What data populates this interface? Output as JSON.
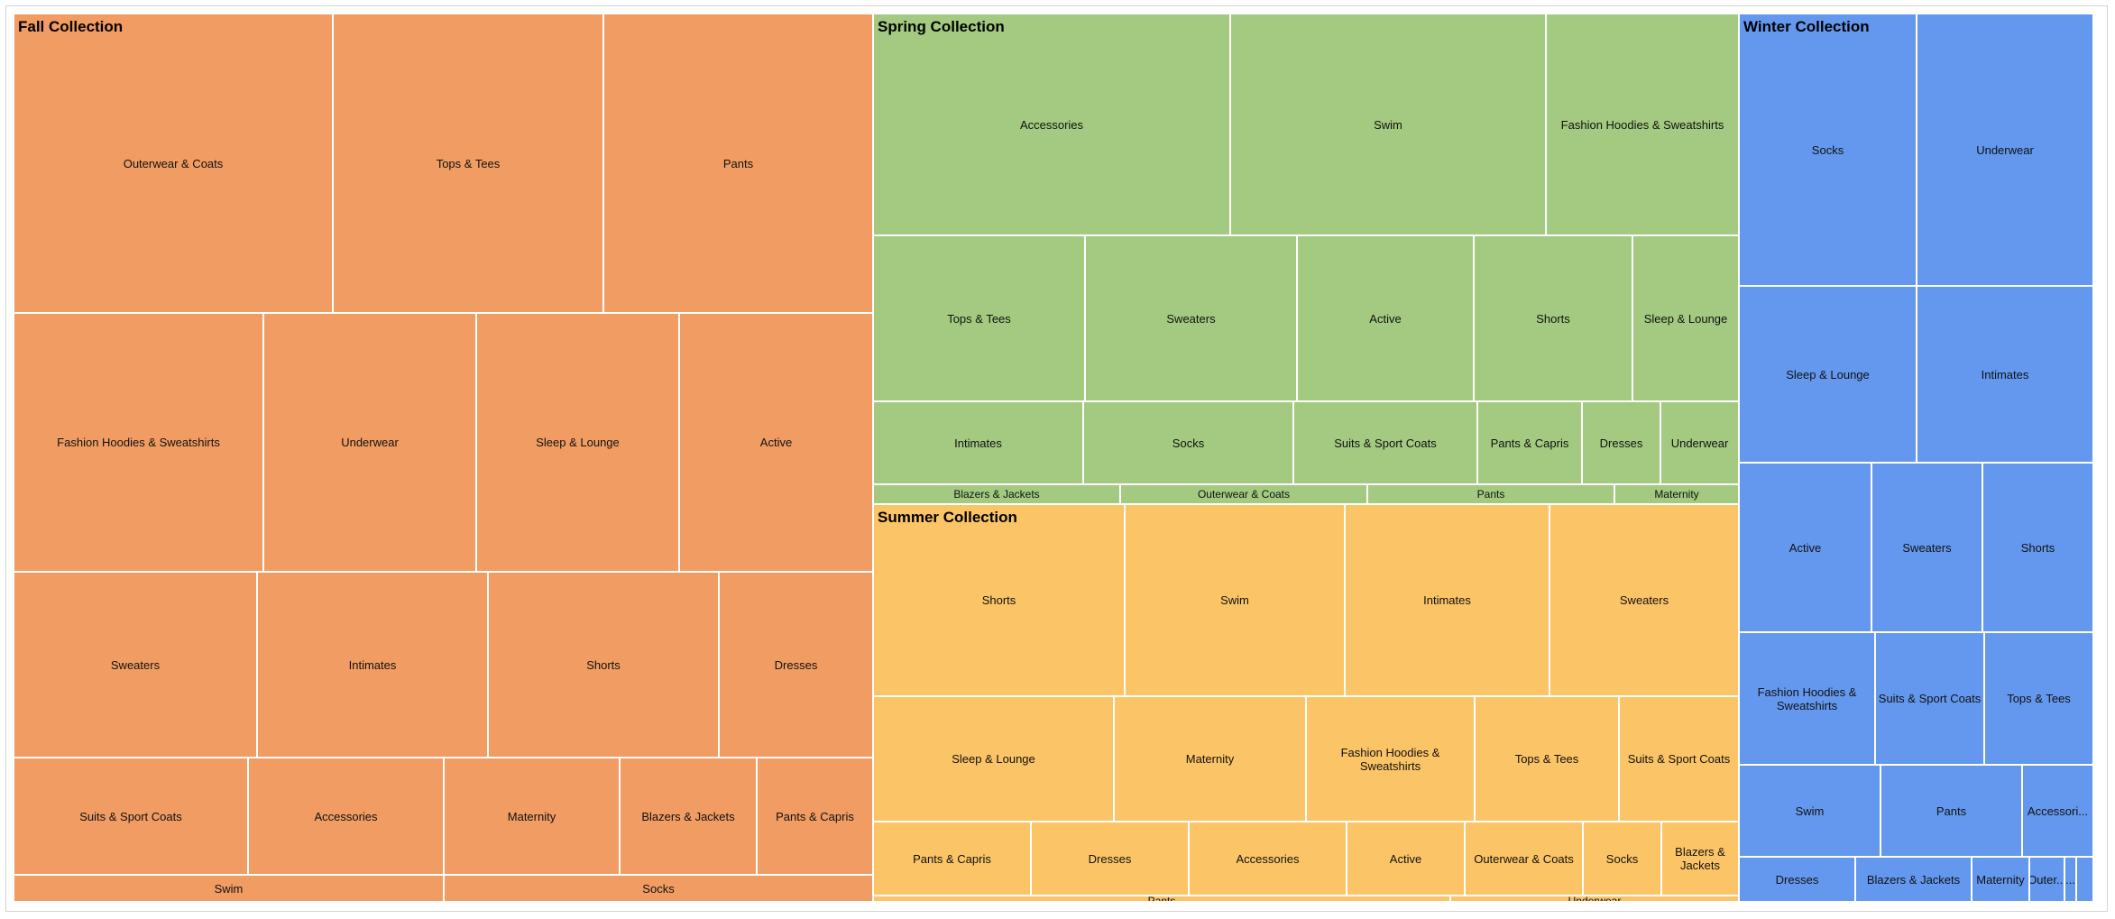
{
  "chart_data": {
    "type": "treemap",
    "title": "",
    "groups": [
      {
        "name": "Fall Collection",
        "color": "#f09c62",
        "items": [
          {
            "label": "Outerwear & Coats",
            "value": 3.9
          },
          {
            "label": "Tops & Tees",
            "value": 3.3
          },
          {
            "label": "Pants",
            "value": 3.3
          },
          {
            "label": "Fashion Hoodies & Sweatshirts",
            "value": 2.7
          },
          {
            "label": "Underwear",
            "value": 2.3
          },
          {
            "label": "Sleep & Lounge",
            "value": 2.2
          },
          {
            "label": "Active",
            "value": 2.1
          },
          {
            "label": "Sweaters",
            "value": 1.9
          },
          {
            "label": "Intimates",
            "value": 1.8
          },
          {
            "label": "Shorts",
            "value": 1.8
          },
          {
            "label": "Dresses",
            "value": 1.2
          },
          {
            "label": "Suits & Sport Coats",
            "value": 1.2
          },
          {
            "label": "Accessories",
            "value": 1.0
          },
          {
            "label": "Maternity",
            "value": 0.9
          },
          {
            "label": "Blazers & Jackets",
            "value": 0.7
          },
          {
            "label": "Pants & Capris",
            "value": 0.6
          },
          {
            "label": "Swim",
            "value": 0.5
          },
          {
            "label": "Socks",
            "value": 0.5
          }
        ]
      },
      {
        "name": "Spring Collection",
        "color": "#a3ca80",
        "items": [
          {
            "label": "Accessories",
            "value": 2.6
          },
          {
            "label": "Swim",
            "value": 2.3
          },
          {
            "label": "Fashion Hoodies & Sweatshirts",
            "value": 1.4
          },
          {
            "label": "Tops & Tees",
            "value": 1.2
          },
          {
            "label": "Sweaters",
            "value": 1.2
          },
          {
            "label": "Active",
            "value": 1.0
          },
          {
            "label": "Shorts",
            "value": 0.9
          },
          {
            "label": "Sleep & Lounge",
            "value": 0.6
          },
          {
            "label": "Intimates",
            "value": 0.8
          },
          {
            "label": "Socks",
            "value": 0.8
          },
          {
            "label": "Suits & Sport Coats",
            "value": 0.7
          },
          {
            "label": "Pants & Capris",
            "value": 0.4
          },
          {
            "label": "Dresses",
            "value": 0.3
          },
          {
            "label": "Underwear",
            "value": 0.3
          },
          {
            "label": "Blazers & Jackets",
            "value": 0.2
          },
          {
            "label": "Outerwear & Coats",
            "value": 0.2
          },
          {
            "label": "Pants",
            "value": 0.2
          },
          {
            "label": "Maternity",
            "value": 0.1
          }
        ]
      },
      {
        "name": "Summer Collection",
        "color": "#fbc466",
        "items": [
          {
            "label": "Shorts",
            "value": 1.6
          },
          {
            "label": "Swim",
            "value": 1.4
          },
          {
            "label": "Intimates",
            "value": 1.3
          },
          {
            "label": "Sweaters",
            "value": 1.2
          },
          {
            "label": "Sleep & Lounge",
            "value": 1.0
          },
          {
            "label": "Maternity",
            "value": 0.8
          },
          {
            "label": "Fashion Hoodies & Sweatshirts",
            "value": 0.7
          },
          {
            "label": "Tops & Tees",
            "value": 0.6
          },
          {
            "label": "Suits & Sport Coats",
            "value": 0.5
          },
          {
            "label": "Pants & Capris",
            "value": 0.4
          },
          {
            "label": "Dresses",
            "value": 0.4
          },
          {
            "label": "Accessories",
            "value": 0.4
          },
          {
            "label": "Active",
            "value": 0.3
          },
          {
            "label": "Outerwear & Coats",
            "value": 0.3
          },
          {
            "label": "Socks",
            "value": 0.2
          },
          {
            "label": "Blazers & Jackets",
            "value": 0.2
          },
          {
            "label": "Pants",
            "value": 0.1
          },
          {
            "label": "Underwear",
            "value": 0.05
          }
        ]
      },
      {
        "name": "Winter Collection",
        "color": "#6498ee",
        "items": [
          {
            "label": "Socks",
            "value": 1.1
          },
          {
            "label": "Underwear",
            "value": 1.1
          },
          {
            "label": "Sleep & Lounge",
            "value": 0.8
          },
          {
            "label": "Intimates",
            "value": 0.8
          },
          {
            "label": "Active",
            "value": 0.6
          },
          {
            "label": "Sweaters",
            "value": 0.5
          },
          {
            "label": "Shorts",
            "value": 0.5
          },
          {
            "label": "Fashion Hoodies & Sweatshirts",
            "value": 0.5
          },
          {
            "label": "Suits & Sport Coats",
            "value": 0.4
          },
          {
            "label": "Tops & Tees",
            "value": 0.4
          },
          {
            "label": "Swim",
            "value": 0.4
          },
          {
            "label": "Pants",
            "value": 0.4
          },
          {
            "label": "Accessori...",
            "value": 0.2
          },
          {
            "label": "Dresses",
            "value": 0.2
          },
          {
            "label": "Blazers & Jackets",
            "value": 0.2
          },
          {
            "label": "Maternity",
            "value": 0.1
          },
          {
            "label": "Outer...",
            "value": 0.06
          },
          {
            "label": "...",
            "value": 0.02
          },
          {
            "label": "",
            "value": 0.03
          }
        ]
      }
    ]
  }
}
